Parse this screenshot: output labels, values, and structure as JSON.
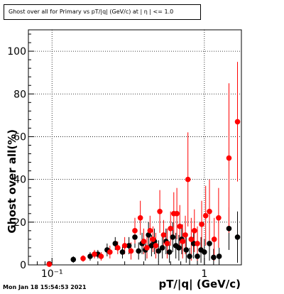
{
  "header": {
    "title": "Ghost over all for Primary vs pT/|q| (GeV/c) at | η | <= 1.0",
    "timestamp": "Mon Jan 18 15:54:53 2021"
  },
  "chart_data": {
    "type": "scatter",
    "title": "Ghost over all for Primary vs pT/|q| (GeV/c) at | η | <= 1.0",
    "xlabel": "pT/|q| (GeV/c)",
    "ylabel": "Ghost over all(%)",
    "xscale": "log",
    "xlim": [
      0.07,
      1.75
    ],
    "ylim": [
      0,
      110
    ],
    "x_ticks": [
      {
        "value": 0.1,
        "label": "10⁻¹"
      },
      {
        "value": 1,
        "label": "1"
      }
    ],
    "y_ticks": [
      0,
      20,
      40,
      60,
      80,
      100
    ],
    "grid": true,
    "colors": {
      "series_black": "#000000",
      "series_red": "#ff0000"
    },
    "series": [
      {
        "color": "#000000",
        "points": [
          {
            "x": 0.096,
            "y": 0.5,
            "err": 0.5
          },
          {
            "x": 0.138,
            "y": 2.5,
            "err": 1.5
          },
          {
            "x": 0.178,
            "y": 4.0,
            "err": 2.0
          },
          {
            "x": 0.2,
            "y": 5.0,
            "err": 2.0
          },
          {
            "x": 0.23,
            "y": 7.0,
            "err": 3.0
          },
          {
            "x": 0.26,
            "y": 10.0,
            "err": 3.0
          },
          {
            "x": 0.29,
            "y": 6.0,
            "err": 3.0
          },
          {
            "x": 0.32,
            "y": 9.0,
            "err": 4.0
          },
          {
            "x": 0.35,
            "y": 13.0,
            "err": 5.0
          },
          {
            "x": 0.37,
            "y": 6.5,
            "err": 4.0
          },
          {
            "x": 0.39,
            "y": 10.0,
            "err": 5.0
          },
          {
            "x": 0.41,
            "y": 7.0,
            "err": 5.0
          },
          {
            "x": 0.43,
            "y": 14.0,
            "err": 6.0
          },
          {
            "x": 0.45,
            "y": 9.0,
            "err": 5.0
          },
          {
            "x": 0.47,
            "y": 11.0,
            "err": 6.0
          },
          {
            "x": 0.5,
            "y": 6.5,
            "err": 5.0
          },
          {
            "x": 0.53,
            "y": 8.0,
            "err": 5.0
          },
          {
            "x": 0.56,
            "y": 11.0,
            "err": 6.0
          },
          {
            "x": 0.59,
            "y": 6.0,
            "err": 5.0
          },
          {
            "x": 0.62,
            "y": 13.0,
            "err": 7.0
          },
          {
            "x": 0.65,
            "y": 9.0,
            "err": 6.0
          },
          {
            "x": 0.68,
            "y": 8.0,
            "err": 6.0
          },
          {
            "x": 0.71,
            "y": 12.0,
            "err": 7.0
          },
          {
            "x": 0.76,
            "y": 7.0,
            "err": 6.0
          },
          {
            "x": 0.8,
            "y": 4.0,
            "err": 4.0
          },
          {
            "x": 0.85,
            "y": 10.0,
            "err": 7.0
          },
          {
            "x": 0.9,
            "y": 4.0,
            "err": 4.0
          },
          {
            "x": 0.95,
            "y": 7.0,
            "err": 6.0
          },
          {
            "x": 1.0,
            "y": 6.0,
            "err": 6.0
          },
          {
            "x": 1.08,
            "y": 10.0,
            "err": 8.0
          },
          {
            "x": 1.15,
            "y": 3.5,
            "err": 4.0
          },
          {
            "x": 1.25,
            "y": 4.0,
            "err": 4.0
          },
          {
            "x": 1.45,
            "y": 17.0,
            "err": 10.0
          },
          {
            "x": 1.65,
            "y": 13.0,
            "err": 12.0
          }
        ]
      },
      {
        "color": "#ff0000",
        "points": [
          {
            "x": 0.096,
            "y": 0.3,
            "err": 0.3
          },
          {
            "x": 0.16,
            "y": 3.0,
            "err": 1.5
          },
          {
            "x": 0.19,
            "y": 5.0,
            "err": 2.0
          },
          {
            "x": 0.21,
            "y": 4.0,
            "err": 2.0
          },
          {
            "x": 0.24,
            "y": 6.0,
            "err": 3.0
          },
          {
            "x": 0.27,
            "y": 8.0,
            "err": 3.0
          },
          {
            "x": 0.3,
            "y": 9.0,
            "err": 4.0
          },
          {
            "x": 0.33,
            "y": 6.5,
            "err": 4.0
          },
          {
            "x": 0.35,
            "y": 16.0,
            "err": 6.0
          },
          {
            "x": 0.38,
            "y": 22.0,
            "err": 8.0
          },
          {
            "x": 0.4,
            "y": 11.0,
            "err": 6.0
          },
          {
            "x": 0.42,
            "y": 8.0,
            "err": 5.0
          },
          {
            "x": 0.44,
            "y": 16.0,
            "err": 7.0
          },
          {
            "x": 0.46,
            "y": 12.0,
            "err": 6.0
          },
          {
            "x": 0.48,
            "y": 9.0,
            "err": 6.0
          },
          {
            "x": 0.51,
            "y": 25.0,
            "err": 10.0
          },
          {
            "x": 0.54,
            "y": 14.0,
            "err": 7.0
          },
          {
            "x": 0.57,
            "y": 10.0,
            "err": 7.0
          },
          {
            "x": 0.6,
            "y": 17.0,
            "err": 8.0
          },
          {
            "x": 0.63,
            "y": 24.0,
            "err": 10.0
          },
          {
            "x": 0.66,
            "y": 24.0,
            "err": 12.0
          },
          {
            "x": 0.69,
            "y": 18.0,
            "err": 10.0
          },
          {
            "x": 0.72,
            "y": 11.0,
            "err": 8.0
          },
          {
            "x": 0.75,
            "y": 14.0,
            "err": 9.0
          },
          {
            "x": 0.78,
            "y": 40.0,
            "err": 22.0
          },
          {
            "x": 0.82,
            "y": 12.0,
            "err": 10.0
          },
          {
            "x": 0.86,
            "y": 16.0,
            "err": 10.0
          },
          {
            "x": 0.9,
            "y": 10.0,
            "err": 8.0
          },
          {
            "x": 0.96,
            "y": 19.0,
            "err": 11.0
          },
          {
            "x": 1.02,
            "y": 23.0,
            "err": 14.0
          },
          {
            "x": 1.08,
            "y": 25.0,
            "err": 15.0
          },
          {
            "x": 1.16,
            "y": 12.0,
            "err": 10.0
          },
          {
            "x": 1.24,
            "y": 22.0,
            "err": 14.0
          },
          {
            "x": 1.45,
            "y": 50.0,
            "err": 35.0
          },
          {
            "x": 1.65,
            "y": 67.0,
            "err": 28.0
          }
        ]
      }
    ]
  }
}
